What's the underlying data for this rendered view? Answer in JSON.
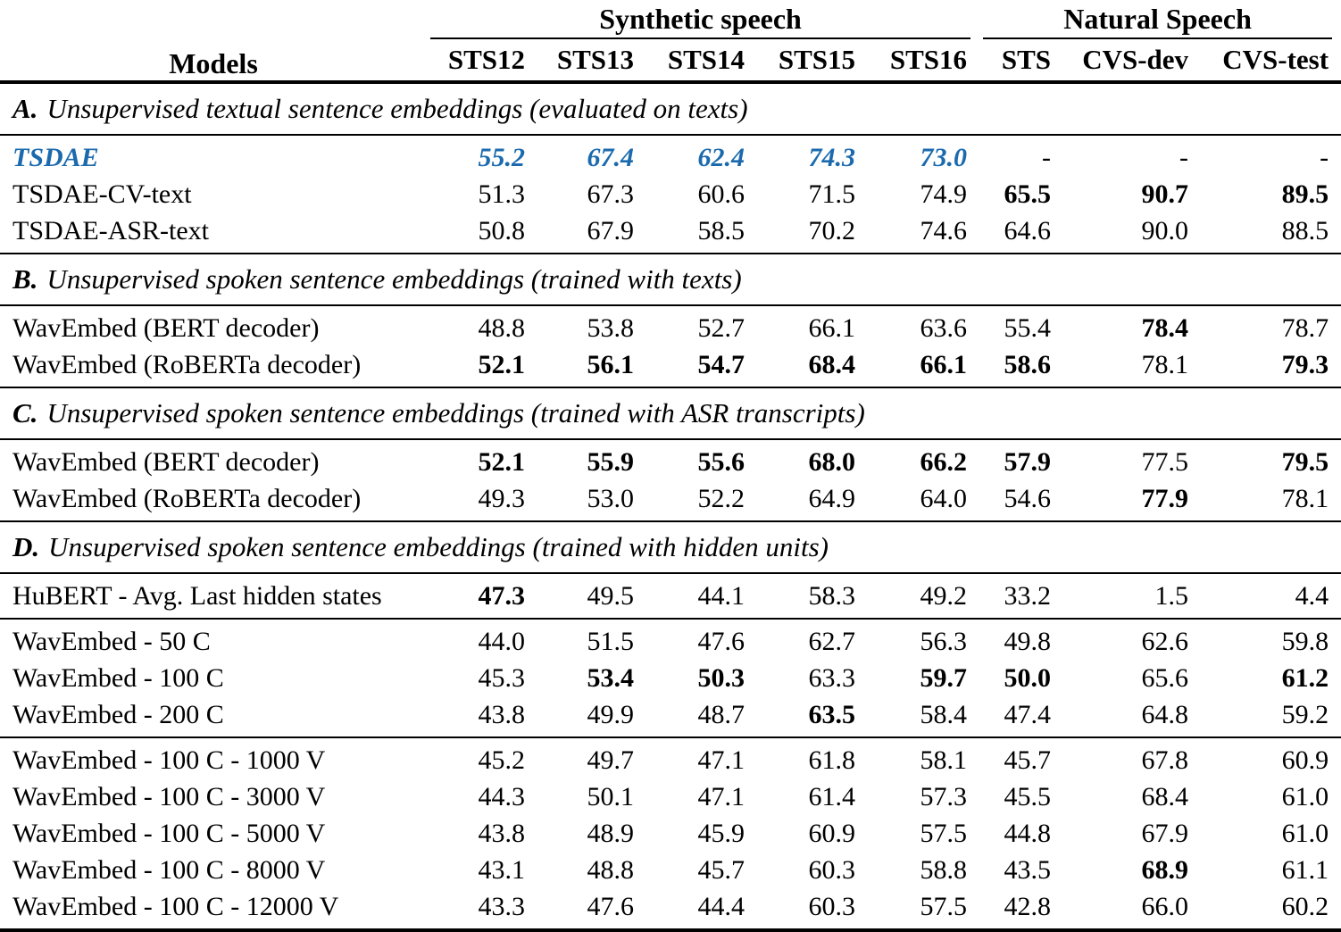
{
  "colors": {
    "accent_blue": "#1b6aae",
    "text": "#000000",
    "rule": "#000000",
    "background": "#ffffff"
  },
  "table": {
    "header": {
      "models_label": "Models",
      "groups": [
        {
          "label": "Synthetic speech"
        },
        {
          "label": "Natural Speech"
        }
      ],
      "columns": [
        "STS12",
        "STS13",
        "STS14",
        "STS15",
        "STS16",
        "STS",
        "CVS-dev",
        "CVS-test"
      ]
    },
    "sections": [
      {
        "prefix": "A.",
        "title": "Unsupervised textual sentence embeddings (evaluated on texts)",
        "groups": [
          {
            "rows": [
              {
                "model": "TSDAE",
                "highlight": true,
                "values": [
                  "55.2",
                  "67.4",
                  "62.4",
                  "74.3",
                  "73.0",
                  "-",
                  "-",
                  "-"
                ],
                "bold": [
                  false,
                  false,
                  false,
                  false,
                  false,
                  false,
                  false,
                  false
                ]
              },
              {
                "model": "TSDAE-CV-text",
                "highlight": false,
                "values": [
                  "51.3",
                  "67.3",
                  "60.6",
                  "71.5",
                  "74.9",
                  "65.5",
                  "90.7",
                  "89.5"
                ],
                "bold": [
                  false,
                  false,
                  false,
                  false,
                  false,
                  true,
                  true,
                  true
                ]
              },
              {
                "model": "TSDAE-ASR-text",
                "highlight": false,
                "values": [
                  "50.8",
                  "67.9",
                  "58.5",
                  "70.2",
                  "74.6",
                  "64.6",
                  "90.0",
                  "88.5"
                ],
                "bold": [
                  false,
                  false,
                  false,
                  false,
                  false,
                  false,
                  false,
                  false
                ]
              }
            ]
          }
        ]
      },
      {
        "prefix": "B.",
        "title": "Unsupervised spoken sentence embeddings (trained with texts)",
        "groups": [
          {
            "rows": [
              {
                "model": "WavEmbed (BERT decoder)",
                "highlight": false,
                "values": [
                  "48.8",
                  "53.8",
                  "52.7",
                  "66.1",
                  "63.6",
                  "55.4",
                  "78.4",
                  "78.7"
                ],
                "bold": [
                  false,
                  false,
                  false,
                  false,
                  false,
                  false,
                  true,
                  false
                ]
              },
              {
                "model": "WavEmbed (RoBERTa decoder)",
                "highlight": false,
                "values": [
                  "52.1",
                  "56.1",
                  "54.7",
                  "68.4",
                  "66.1",
                  "58.6",
                  "78.1",
                  "79.3"
                ],
                "bold": [
                  true,
                  true,
                  true,
                  true,
                  true,
                  true,
                  false,
                  true
                ]
              }
            ]
          }
        ]
      },
      {
        "prefix": "C.",
        "title": "Unsupervised spoken sentence embeddings (trained with ASR transcripts)",
        "groups": [
          {
            "rows": [
              {
                "model": "WavEmbed (BERT decoder)",
                "highlight": false,
                "values": [
                  "52.1",
                  "55.9",
                  "55.6",
                  "68.0",
                  "66.2",
                  "57.9",
                  "77.5",
                  "79.5"
                ],
                "bold": [
                  true,
                  true,
                  true,
                  true,
                  true,
                  true,
                  false,
                  true
                ]
              },
              {
                "model": "WavEmbed (RoBERTa decoder)",
                "highlight": false,
                "values": [
                  "49.3",
                  "53.0",
                  "52.2",
                  "64.9",
                  "64.0",
                  "54.6",
                  "77.9",
                  "78.1"
                ],
                "bold": [
                  false,
                  false,
                  false,
                  false,
                  false,
                  false,
                  true,
                  false
                ]
              }
            ]
          }
        ]
      },
      {
        "prefix": "D.",
        "title": "Unsupervised spoken sentence embeddings (trained with hidden units)",
        "groups": [
          {
            "rows": [
              {
                "model": "HuBERT - Avg. Last hidden states",
                "highlight": false,
                "values": [
                  "47.3",
                  "49.5",
                  "44.1",
                  "58.3",
                  "49.2",
                  "33.2",
                  "1.5",
                  "4.4"
                ],
                "bold": [
                  true,
                  false,
                  false,
                  false,
                  false,
                  false,
                  false,
                  false
                ]
              }
            ]
          },
          {
            "rows": [
              {
                "model": "WavEmbed - 50 C",
                "highlight": false,
                "values": [
                  "44.0",
                  "51.5",
                  "47.6",
                  "62.7",
                  "56.3",
                  "49.8",
                  "62.6",
                  "59.8"
                ],
                "bold": [
                  false,
                  false,
                  false,
                  false,
                  false,
                  false,
                  false,
                  false
                ]
              },
              {
                "model": "WavEmbed - 100 C",
                "highlight": false,
                "values": [
                  "45.3",
                  "53.4",
                  "50.3",
                  "63.3",
                  "59.7",
                  "50.0",
                  "65.6",
                  "61.2"
                ],
                "bold": [
                  false,
                  true,
                  true,
                  false,
                  true,
                  true,
                  false,
                  true
                ]
              },
              {
                "model": "WavEmbed - 200 C",
                "highlight": false,
                "values": [
                  "43.8",
                  "49.9",
                  "48.7",
                  "63.5",
                  "58.4",
                  "47.4",
                  "64.8",
                  "59.2"
                ],
                "bold": [
                  false,
                  false,
                  false,
                  true,
                  false,
                  false,
                  false,
                  false
                ]
              }
            ]
          },
          {
            "rows": [
              {
                "model": "WavEmbed - 100 C - 1000 V",
                "highlight": false,
                "values": [
                  "45.2",
                  "49.7",
                  "47.1",
                  "61.8",
                  "58.1",
                  "45.7",
                  "67.8",
                  "60.9"
                ],
                "bold": [
                  false,
                  false,
                  false,
                  false,
                  false,
                  false,
                  false,
                  false
                ]
              },
              {
                "model": "WavEmbed - 100 C - 3000 V",
                "highlight": false,
                "values": [
                  "44.3",
                  "50.1",
                  "47.1",
                  "61.4",
                  "57.3",
                  "45.5",
                  "68.4",
                  "61.0"
                ],
                "bold": [
                  false,
                  false,
                  false,
                  false,
                  false,
                  false,
                  false,
                  false
                ]
              },
              {
                "model": "WavEmbed - 100 C - 5000 V",
                "highlight": false,
                "values": [
                  "43.8",
                  "48.9",
                  "45.9",
                  "60.9",
                  "57.5",
                  "44.8",
                  "67.9",
                  "61.0"
                ],
                "bold": [
                  false,
                  false,
                  false,
                  false,
                  false,
                  false,
                  false,
                  false
                ]
              },
              {
                "model": "WavEmbed - 100 C - 8000 V",
                "highlight": false,
                "values": [
                  "43.1",
                  "48.8",
                  "45.7",
                  "60.3",
                  "58.8",
                  "43.5",
                  "68.9",
                  "61.1"
                ],
                "bold": [
                  false,
                  false,
                  false,
                  false,
                  false,
                  false,
                  true,
                  false
                ]
              },
              {
                "model": "WavEmbed - 100 C - 12000 V",
                "highlight": false,
                "values": [
                  "43.3",
                  "47.6",
                  "44.4",
                  "60.3",
                  "57.5",
                  "42.8",
                  "66.0",
                  "60.2"
                ],
                "bold": [
                  false,
                  false,
                  false,
                  false,
                  false,
                  false,
                  false,
                  false
                ]
              }
            ]
          }
        ]
      }
    ]
  }
}
